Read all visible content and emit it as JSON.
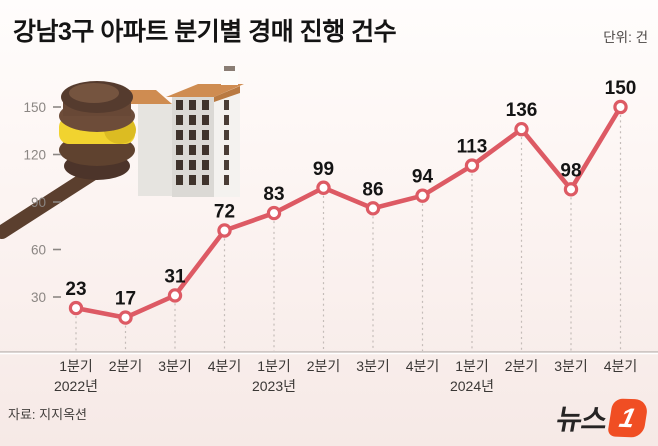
{
  "chart_data": {
    "type": "line",
    "title": "강남3구 아파트 분기별 경매 진행 건수",
    "unit_label": "단위: 건",
    "categories": [
      "1분기",
      "2분기",
      "3분기",
      "4분기",
      "1분기",
      "2분기",
      "3분기",
      "4분기",
      "1분기",
      "2분기",
      "3분기",
      "4분기"
    ],
    "year_labels": [
      {
        "index": 0,
        "label": "2022년"
      },
      {
        "index": 4,
        "label": "2023년"
      },
      {
        "index": 8,
        "label": "2024년"
      }
    ],
    "values": [
      23,
      17,
      31,
      72,
      83,
      99,
      86,
      94,
      113,
      136,
      98,
      150
    ],
    "yticks": [
      30,
      60,
      90,
      120,
      150
    ],
    "ylim": [
      0,
      160
    ],
    "grid": "none",
    "legend": "none",
    "marker": "open-circle",
    "drop_lines": "dashed"
  },
  "footer": {
    "source": "자료: 지지옥션",
    "logo_text": "뉴스",
    "logo_number": "1"
  },
  "colors": {
    "line": "#dd5a64",
    "marker_fill": "#ffffff",
    "axis_line": "#cfc7c4",
    "drop_line": "#c4bcb8",
    "y_tick": "#8b8683",
    "x_label": "#3a3735",
    "value_label": "#141414",
    "background_top": "#fffdfc",
    "background_bottom": "#f5e8e5",
    "logo_orange": "#f04e23",
    "logo_dark": "#262424"
  }
}
